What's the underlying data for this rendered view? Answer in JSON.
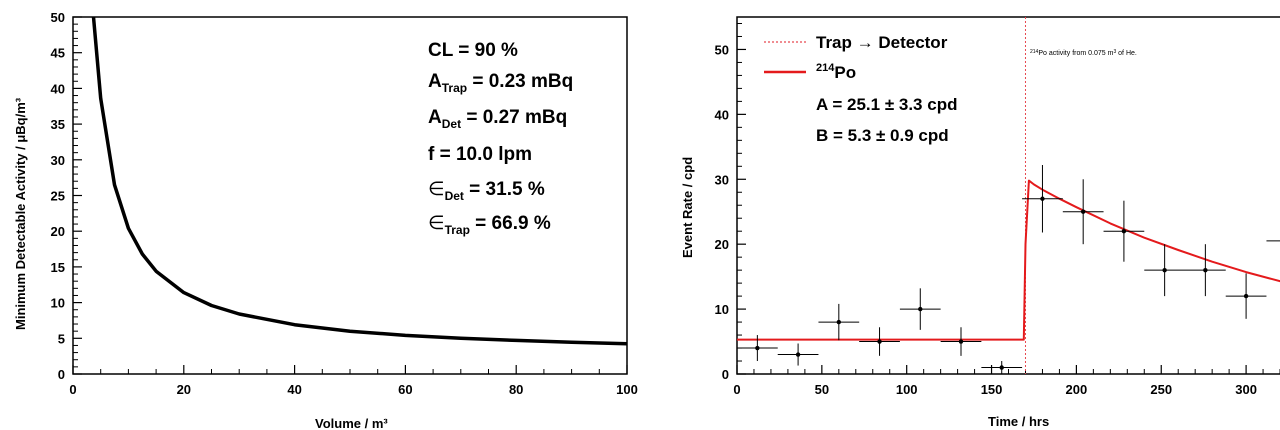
{
  "chart_data": [
    {
      "type": "line",
      "xlabel": "Volume / m³",
      "ylabel": "Minimum Detectable Activity / μBq/m³",
      "xlim": [
        0,
        100
      ],
      "ylim": [
        0,
        50
      ],
      "x_ticks": [
        "0",
        "20",
        "40",
        "60",
        "80",
        "100"
      ],
      "y_ticks": [
        "0",
        "5",
        "10",
        "15",
        "20",
        "25",
        "30",
        "35",
        "40",
        "45",
        "50"
      ],
      "grid": false,
      "series": [
        {
          "x": [
            3.7,
            5,
            7.5,
            10,
            12.5,
            15,
            20,
            25,
            30,
            40,
            50,
            60,
            70,
            80,
            90,
            100
          ],
          "y": [
            50,
            38.6,
            26.5,
            20.4,
            16.8,
            14.4,
            11.4,
            9.6,
            8.4,
            6.9,
            6.0,
            5.4,
            5.0,
            4.7,
            4.45,
            4.25
          ]
        }
      ],
      "annotations": [
        "CL = 90 %",
        "A_Trap = 0.23 mBq",
        "A_Det = 0.27 mBq",
        "f = 10.0 lpm",
        "∈_Det = 31.5 %",
        "∈_Trap = 66.9 %"
      ],
      "line_color": "#000000"
    },
    {
      "type": "scatter",
      "xlabel": "Time / hrs",
      "ylabel": "Event Rate / cpd",
      "xlim": [
        0,
        330
      ],
      "ylim": [
        0,
        55
      ],
      "x_ticks": [
        "0",
        "50",
        "100",
        "150",
        "200",
        "250",
        "300"
      ],
      "y_ticks": [
        "0",
        "10",
        "20",
        "30",
        "40",
        "50"
      ],
      "grid": false,
      "legend_placement": "top-left",
      "legend": [
        {
          "label": "Trap → Detector",
          "style": "dotted",
          "color": "#e8474f"
        },
        {
          "label": "²¹⁴Po",
          "style": "solid",
          "color": "#e41a1c"
        }
      ],
      "annotations": [
        "A = 25.1 ± 3.3 cpd",
        "B = 5.3 ± 0.9 cpd"
      ],
      "note": "²¹⁴Po activity from 0.075 m³ of He.",
      "transfer_time": 170,
      "points": [
        {
          "x": 12,
          "y": 4,
          "xerr": 12,
          "yerr_lo": 2,
          "yerr_hi": 2
        },
        {
          "x": 36,
          "y": 3,
          "xerr": 12,
          "yerr_lo": 1.7,
          "yerr_hi": 1.7
        },
        {
          "x": 60,
          "y": 8,
          "xerr": 12,
          "yerr_lo": 2.8,
          "yerr_hi": 2.8
        },
        {
          "x": 84,
          "y": 5,
          "xerr": 12,
          "yerr_lo": 2.2,
          "yerr_hi": 2.2
        },
        {
          "x": 108,
          "y": 10,
          "xerr": 12,
          "yerr_lo": 3.2,
          "yerr_hi": 3.2
        },
        {
          "x": 132,
          "y": 5,
          "xerr": 12,
          "yerr_lo": 2.2,
          "yerr_hi": 2.2
        },
        {
          "x": 156,
          "y": 1,
          "xerr": 12,
          "yerr_lo": 1,
          "yerr_hi": 1
        },
        {
          "x": 180,
          "y": 27,
          "xerr": 12,
          "yerr_lo": 5.2,
          "yerr_hi": 5.2
        },
        {
          "x": 204,
          "y": 25,
          "xerr": 12,
          "yerr_lo": 5,
          "yerr_hi": 5
        },
        {
          "x": 228,
          "y": 22,
          "xerr": 12,
          "yerr_lo": 4.7,
          "yerr_hi": 4.7
        },
        {
          "x": 252,
          "y": 16,
          "xerr": 12,
          "yerr_lo": 4,
          "yerr_hi": 4
        },
        {
          "x": 276,
          "y": 16,
          "xerr": 12,
          "yerr_lo": 4,
          "yerr_hi": 4
        },
        {
          "x": 300,
          "y": 12,
          "xerr": 12,
          "yerr_lo": 3.5,
          "yerr_hi": 3.5
        },
        {
          "x": 324,
          "y": 20.5,
          "xerr": 12,
          "yerr_lo": 4.5,
          "yerr_hi": 4.5
        }
      ],
      "fit": {
        "x": [
          0,
          169,
          170,
          172,
          175,
          180,
          190,
          200,
          220,
          240,
          260,
          280,
          300,
          320,
          330
        ],
        "y": [
          5.3,
          5.3,
          20,
          29.8,
          29.2,
          28.4,
          27.0,
          25.7,
          23.2,
          21.0,
          19.1,
          17.3,
          15.7,
          14.3,
          13.6
        ]
      }
    }
  ]
}
